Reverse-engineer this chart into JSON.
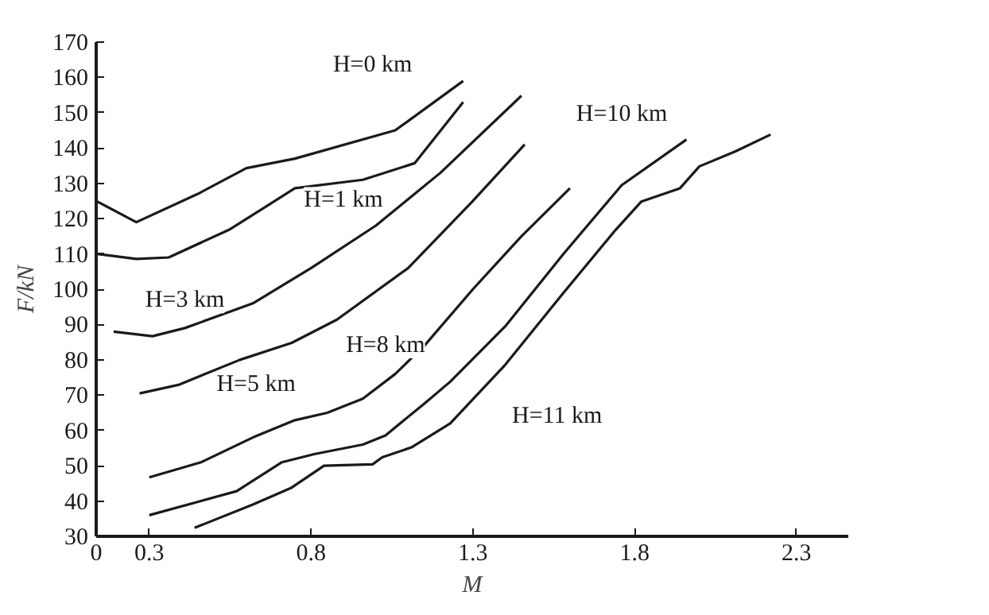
{
  "chart_data": {
    "type": "line",
    "xlabel": "M",
    "ylabel": "F/kN",
    "xlim": [
      0.136,
      2.46
    ],
    "ylim": [
      30,
      170
    ],
    "xticks": [
      {
        "value": 0.136,
        "label": "0"
      },
      0.3,
      0.8,
      1.3,
      1.8,
      2.3
    ],
    "yticks": [
      30,
      40,
      50,
      60,
      70,
      80,
      90,
      100,
      110,
      120,
      130,
      140,
      150,
      160,
      170
    ],
    "grid": false,
    "legend": false,
    "marker": "none",
    "line_style": "solid",
    "series": [
      {
        "name": "H=0 km",
        "color": "#1a1a1a",
        "x": [
          0.136,
          0.26,
          0.45,
          0.6,
          0.75,
          1.06,
          1.27
        ],
        "values": [
          125,
          119,
          127,
          134.3,
          137,
          145,
          159
        ]
      },
      {
        "name": "H=1 km",
        "color": "#1a1a1a",
        "x": [
          0.14,
          0.26,
          0.36,
          0.55,
          0.75,
          0.96,
          1.12,
          1.27
        ],
        "values": [
          110,
          108.6,
          109,
          117,
          128.6,
          131,
          135.7,
          153
        ]
      },
      {
        "name": "H=3 km",
        "color": "#1a1a1a",
        "x": [
          0.19,
          0.31,
          0.41,
          0.62,
          0.8,
          1.0,
          1.2,
          1.45
        ],
        "values": [
          88,
          86.7,
          89,
          96,
          106,
          118,
          133,
          154.8
        ]
      },
      {
        "name": "H=5 km",
        "color": "#1a1a1a",
        "x": [
          0.27,
          0.39,
          0.58,
          0.74,
          0.88,
          1.1,
          1.3,
          1.46
        ],
        "values": [
          70.5,
          72.9,
          80,
          84.8,
          91.4,
          106,
          125,
          141
        ]
      },
      {
        "name": "H=8 km",
        "color": "#1a1a1a",
        "x": [
          0.3,
          0.46,
          0.62,
          0.75,
          0.85,
          0.96,
          1.06,
          1.15,
          1.3,
          1.45,
          1.6
        ],
        "values": [
          46.7,
          51,
          58,
          62.9,
          65,
          69,
          76,
          84,
          100,
          115,
          128.6
        ]
      },
      {
        "name": "H=10 km",
        "color": "#1a1a1a",
        "x": [
          0.3,
          0.57,
          0.71,
          0.81,
          0.96,
          1.03,
          1.15,
          1.23,
          1.4,
          1.58,
          1.76,
          1.96
        ],
        "values": [
          36,
          42.8,
          51,
          53.3,
          56,
          58.6,
          67.6,
          73.8,
          89.5,
          110,
          129.5,
          142.4
        ]
      },
      {
        "name": "H=11 km",
        "color": "#1a1a1a",
        "x": [
          0.44,
          0.62,
          0.74,
          0.84,
          0.99,
          1.02,
          1.11,
          1.23,
          1.4,
          1.58,
          1.74,
          1.82,
          1.94,
          2.0,
          2.11,
          2.22
        ],
        "values": [
          32.4,
          39,
          43.8,
          50,
          50.4,
          52.4,
          55.2,
          62,
          78.6,
          99,
          116.7,
          124.8,
          128.6,
          134.8,
          139,
          143.8
        ]
      }
    ]
  }
}
